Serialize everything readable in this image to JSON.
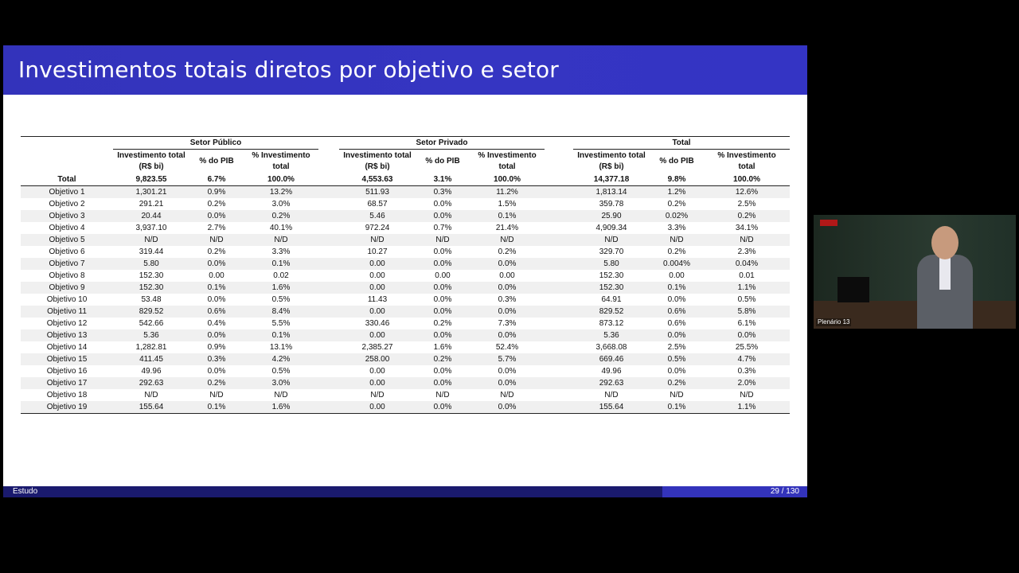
{
  "slide": {
    "title": "Investimentos totais diretos por objetivo e setor",
    "footer_left": "Estudo",
    "page_indicator": "29 / 130"
  },
  "table": {
    "groups": [
      "Setor Público",
      "Setor Privado",
      "Total"
    ],
    "subheaders": {
      "investimento_line1": "Investimento total",
      "investimento_line2": "(R$ bi)",
      "pib": "% do PIB",
      "pct_line1": "% Investimento",
      "pct_line2": "total"
    },
    "total_row": {
      "label": "Total",
      "values": [
        "9,823.55",
        "6.7%",
        "100.0%",
        "4,553.63",
        "3.1%",
        "100.0%",
        "14,377.18",
        "9.8%",
        "100.0%"
      ]
    },
    "rows": [
      {
        "label": "Objetivo 1",
        "values": [
          "1,301.21",
          "0.9%",
          "13.2%",
          "511.93",
          "0.3%",
          "11.2%",
          "1,813.14",
          "1.2%",
          "12.6%"
        ]
      },
      {
        "label": "Objetivo 2",
        "values": [
          "291.21",
          "0.2%",
          "3.0%",
          "68.57",
          "0.0%",
          "1.5%",
          "359.78",
          "0.2%",
          "2.5%"
        ]
      },
      {
        "label": "Objetivo 3",
        "values": [
          "20.44",
          "0.0%",
          "0.2%",
          "5.46",
          "0.0%",
          "0.1%",
          "25.90",
          "0.02%",
          "0.2%"
        ]
      },
      {
        "label": "Objetivo 4",
        "values": [
          "3,937.10",
          "2.7%",
          "40.1%",
          "972.24",
          "0.7%",
          "21.4%",
          "4,909.34",
          "3.3%",
          "34.1%"
        ]
      },
      {
        "label": "Objetivo 5",
        "values": [
          "N/D",
          "N/D",
          "N/D",
          "N/D",
          "N/D",
          "N/D",
          "N/D",
          "N/D",
          "N/D"
        ]
      },
      {
        "label": "Objetivo 6",
        "values": [
          "319.44",
          "0.2%",
          "3.3%",
          "10.27",
          "0.0%",
          "0.2%",
          "329.70",
          "0.2%",
          "2.3%"
        ]
      },
      {
        "label": "Objetivo 7",
        "values": [
          "5.80",
          "0.0%",
          "0.1%",
          "0.00",
          "0.0%",
          "0.0%",
          "5.80",
          "0.004%",
          "0.04%"
        ]
      },
      {
        "label": "Objetivo 8",
        "values": [
          "152.30",
          "0.00",
          "0.02",
          "0.00",
          "0.00",
          "0.00",
          "152.30",
          "0.00",
          "0.01"
        ]
      },
      {
        "label": "Objetivo 9",
        "values": [
          "152.30",
          "0.1%",
          "1.6%",
          "0.00",
          "0.0%",
          "0.0%",
          "152.30",
          "0.1%",
          "1.1%"
        ]
      },
      {
        "label": "Objetivo 10",
        "values": [
          "53.48",
          "0.0%",
          "0.5%",
          "11.43",
          "0.0%",
          "0.3%",
          "64.91",
          "0.0%",
          "0.5%"
        ]
      },
      {
        "label": "Objetivo 11",
        "values": [
          "829.52",
          "0.6%",
          "8.4%",
          "0.00",
          "0.0%",
          "0.0%",
          "829.52",
          "0.6%",
          "5.8%"
        ]
      },
      {
        "label": "Objetivo 12",
        "values": [
          "542.66",
          "0.4%",
          "5.5%",
          "330.46",
          "0.2%",
          "7.3%",
          "873.12",
          "0.6%",
          "6.1%"
        ]
      },
      {
        "label": "Objetivo 13",
        "values": [
          "5.36",
          "0.0%",
          "0.1%",
          "0.00",
          "0.0%",
          "0.0%",
          "5.36",
          "0.0%",
          "0.0%"
        ]
      },
      {
        "label": "Objetivo 14",
        "values": [
          "1,282.81",
          "0.9%",
          "13.1%",
          "2,385.27",
          "1.6%",
          "52.4%",
          "3,668.08",
          "2.5%",
          "25.5%"
        ]
      },
      {
        "label": "Objetivo 15",
        "values": [
          "411.45",
          "0.3%",
          "4.2%",
          "258.00",
          "0.2%",
          "5.7%",
          "669.46",
          "0.5%",
          "4.7%"
        ]
      },
      {
        "label": "Objetivo 16",
        "values": [
          "49.96",
          "0.0%",
          "0.5%",
          "0.00",
          "0.0%",
          "0.0%",
          "49.96",
          "0.0%",
          "0.3%"
        ]
      },
      {
        "label": "Objetivo 17",
        "values": [
          "292.63",
          "0.2%",
          "3.0%",
          "0.00",
          "0.0%",
          "0.0%",
          "292.63",
          "0.2%",
          "2.0%"
        ]
      },
      {
        "label": "Objetivo 18",
        "values": [
          "N/D",
          "N/D",
          "N/D",
          "N/D",
          "N/D",
          "N/D",
          "N/D",
          "N/D",
          "N/D"
        ]
      },
      {
        "label": "Objetivo 19",
        "values": [
          "155.64",
          "0.1%",
          "1.6%",
          "0.00",
          "0.0%",
          "0.0%",
          "155.64",
          "0.1%",
          "1.1%"
        ]
      }
    ]
  },
  "video_overlay": {
    "label": "Plenário 13"
  }
}
